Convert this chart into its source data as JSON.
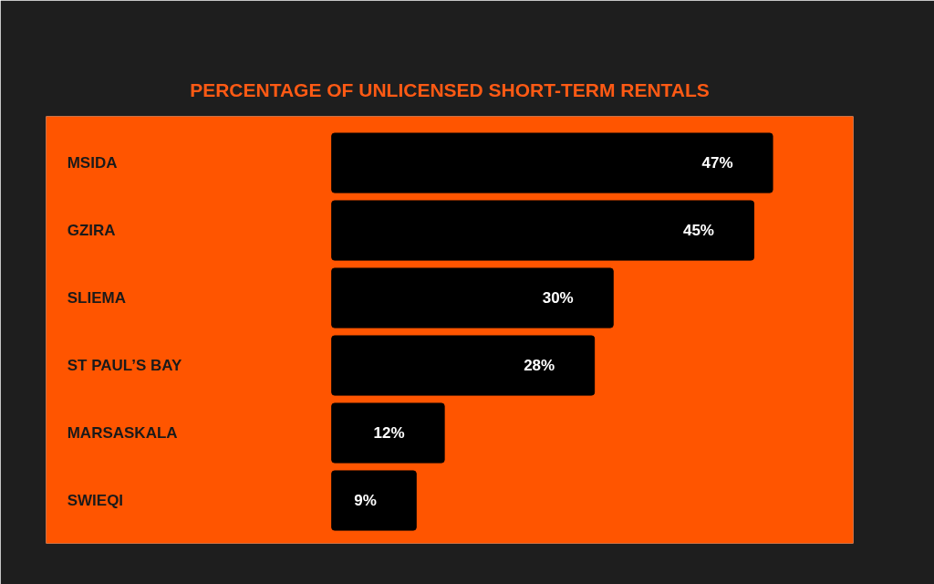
{
  "chart_data": {
    "type": "bar",
    "orientation": "horizontal",
    "title": "PERCENTAGE OF UNLICENSED SHORT-TERM RENTALS",
    "categories": [
      "MSIDA",
      "GZIRA",
      "SLIEMA",
      "ST PAUL’S BAY",
      "MARSASKALA",
      "SWIEQI"
    ],
    "values": [
      47,
      45,
      30,
      28,
      12,
      9
    ],
    "value_labels": [
      "47%",
      "45%",
      "30%",
      "28%",
      "12%",
      "9%"
    ],
    "color": "#000000",
    "tick_labels": "y"
  }
}
